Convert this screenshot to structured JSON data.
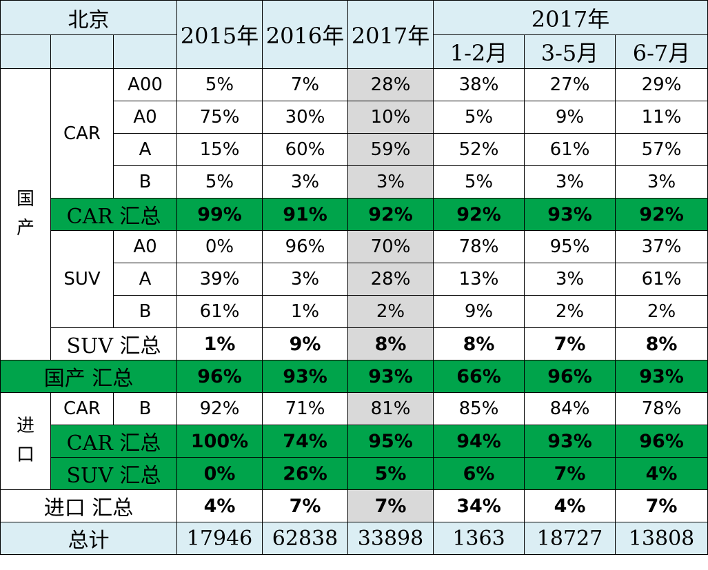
{
  "chart_data": {
    "type": "table",
    "title": "北京",
    "header": {
      "cols_top": [
        "2015年",
        "2016年",
        "2017年"
      ],
      "group_2017": "2017年",
      "cols_sub": [
        "1-2月",
        "3-5月",
        "6-7月"
      ]
    },
    "domestic": {
      "label": "国产",
      "car": {
        "label": "CAR",
        "rows": [
          {
            "seg": "A00",
            "values": [
              "5%",
              "7%",
              "28%",
              "38%",
              "27%",
              "29%"
            ]
          },
          {
            "seg": "A0",
            "values": [
              "75%",
              "30%",
              "10%",
              "5%",
              "9%",
              "11%"
            ]
          },
          {
            "seg": "A",
            "values": [
              "15%",
              "60%",
              "59%",
              "52%",
              "61%",
              "57%"
            ]
          },
          {
            "seg": "B",
            "values": [
              "5%",
              "3%",
              "3%",
              "5%",
              "3%",
              "3%"
            ]
          }
        ],
        "summary": {
          "label": "CAR 汇总",
          "values": [
            "99%",
            "91%",
            "92%",
            "92%",
            "93%",
            "92%"
          ]
        }
      },
      "suv": {
        "label": "SUV",
        "rows": [
          {
            "seg": "A0",
            "values": [
              "0%",
              "96%",
              "70%",
              "78%",
              "95%",
              "37%"
            ]
          },
          {
            "seg": "A",
            "values": [
              "39%",
              "3%",
              "28%",
              "13%",
              "3%",
              "61%"
            ]
          },
          {
            "seg": "B",
            "values": [
              "61%",
              "1%",
              "2%",
              "9%",
              "2%",
              "2%"
            ]
          }
        ],
        "summary": {
          "label": "SUV 汇总",
          "values": [
            "1%",
            "9%",
            "8%",
            "8%",
            "7%",
            "8%"
          ]
        }
      },
      "summary": {
        "label": "国产 汇总",
        "values": [
          "96%",
          "93%",
          "93%",
          "66%",
          "96%",
          "93%"
        ]
      }
    },
    "imported": {
      "label": "进口",
      "car_row": {
        "label": "CAR",
        "seg": "B",
        "values": [
          "92%",
          "71%",
          "81%",
          "85%",
          "84%",
          "78%"
        ]
      },
      "car_summary": {
        "label": "CAR 汇总",
        "values": [
          "100%",
          "74%",
          "95%",
          "94%",
          "93%",
          "96%"
        ]
      },
      "suv_summary": {
        "label": "SUV 汇总",
        "values": [
          "0%",
          "26%",
          "5%",
          "6%",
          "7%",
          "4%"
        ]
      },
      "summary": {
        "label": "进口 汇总",
        "values": [
          "4%",
          "7%",
          "7%",
          "34%",
          "4%",
          "7%"
        ]
      }
    },
    "total": {
      "label": "总计",
      "values": [
        "17946",
        "62838",
        "33898",
        "1363",
        "18727",
        "13808"
      ]
    }
  },
  "colors": {
    "header_bg": "#dbeef4",
    "summary_green": "#00a44b",
    "highlight_gray": "#d9d9d9"
  }
}
